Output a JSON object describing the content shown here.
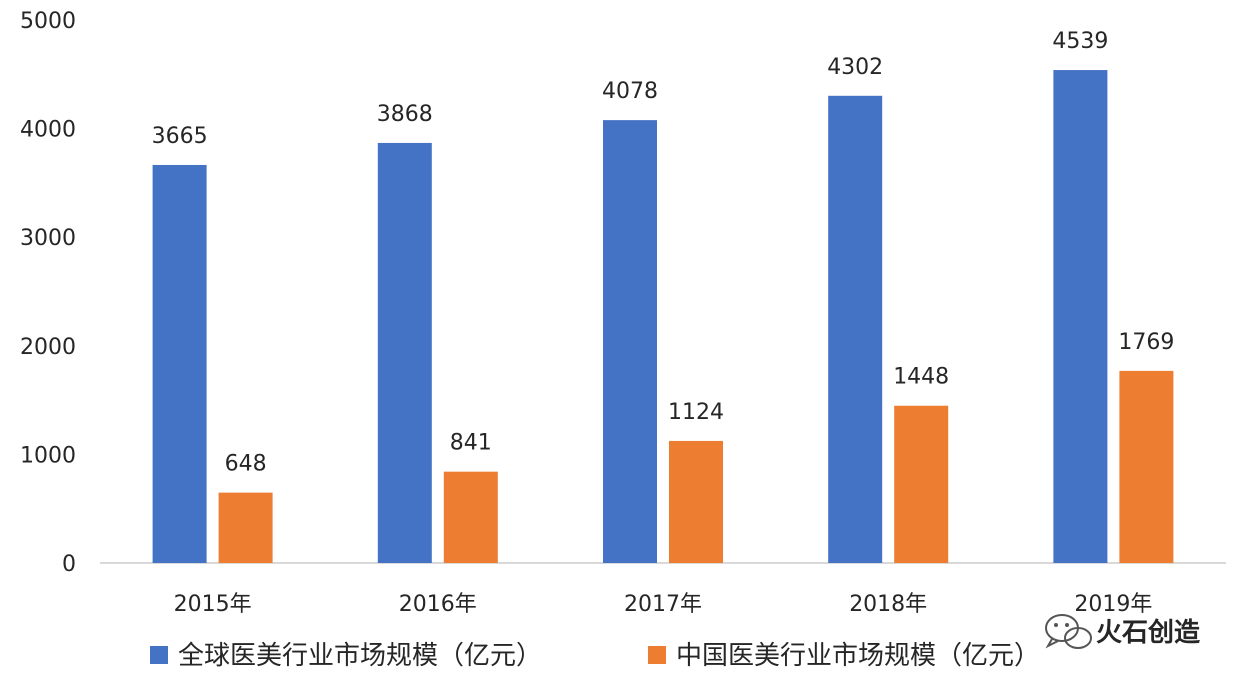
{
  "chart_data": {
    "type": "bar",
    "title": "",
    "xlabel": "",
    "ylabel": "",
    "categories": [
      "2015年",
      "2016年",
      "2017年",
      "2018年",
      "2019年"
    ],
    "series": [
      {
        "name": "全球医美行业市场规模（亿元）",
        "color": "#4472c4",
        "values": [
          3665,
          3868,
          4078,
          4302,
          4539
        ]
      },
      {
        "name": "中国医美行业市场规模（亿元）",
        "color": "#ed7d31",
        "values": [
          648,
          841,
          1124,
          1448,
          1769
        ]
      }
    ],
    "ylim": [
      0,
      5000
    ],
    "yticks": [
      "0",
      "1000",
      "2000",
      "3000",
      "4000",
      "5000"
    ],
    "grid": false,
    "legend_position": "bottom-left",
    "data_labels": true
  },
  "watermark": {
    "text": "火石创造",
    "icon": "wechat-icon"
  }
}
